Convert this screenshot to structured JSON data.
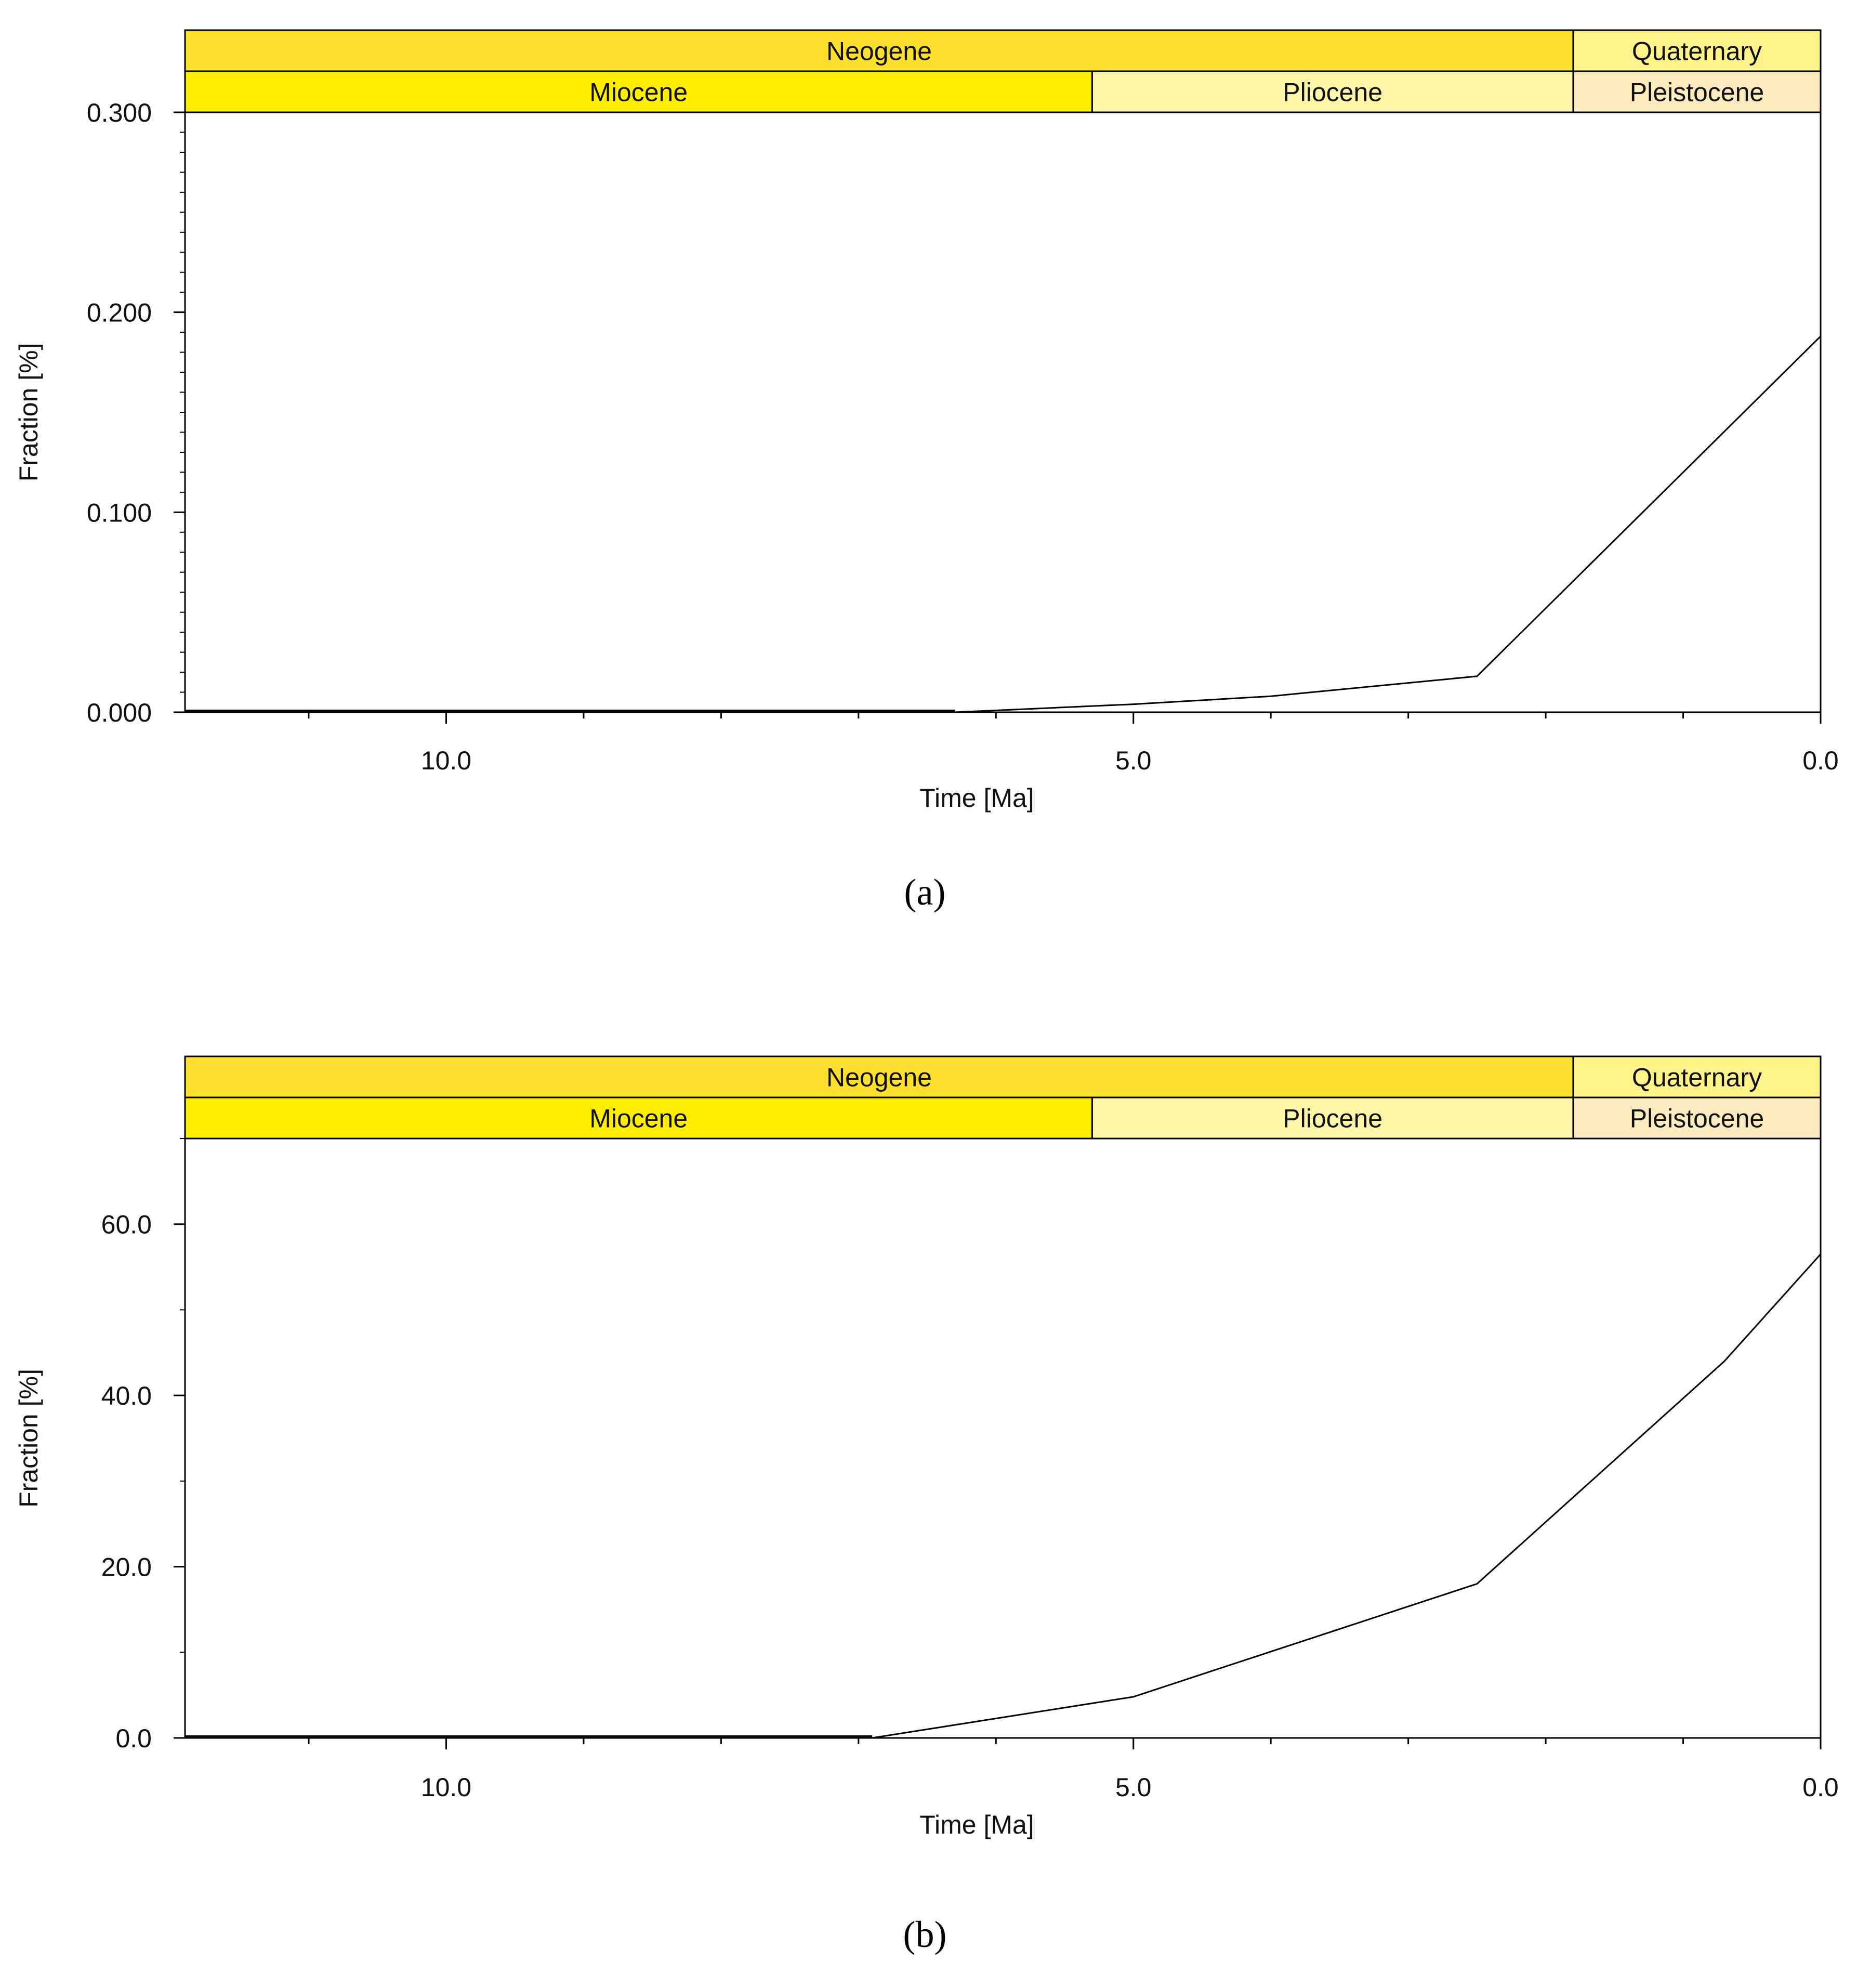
{
  "chart_data": [
    {
      "type": "line",
      "caption": "(a)",
      "xlabel": "Time [Ma]",
      "ylabel": "Fraction [%]",
      "xlim": [
        11.9,
        0.0
      ],
      "ylim": [
        0.0,
        0.3
      ],
      "x_reversed": true,
      "x_ticks": [
        "10.0",
        "5.0",
        "0.0"
      ],
      "y_ticks": [
        "0.000",
        "0.100",
        "0.200",
        "0.300"
      ],
      "grid": false,
      "timescale": {
        "periods": [
          {
            "name": "Neogene",
            "start": 11.9,
            "end": 1.8,
            "color": "#fde02e"
          },
          {
            "name": "Quaternary",
            "start": 1.8,
            "end": 0.0,
            "color": "#fef48a"
          }
        ],
        "epochs": [
          {
            "name": "Miocene",
            "start": 11.9,
            "end": 5.3,
            "color": "#ffee00"
          },
          {
            "name": "Pliocene",
            "start": 5.3,
            "end": 1.8,
            "color": "#fef7a8"
          },
          {
            "name": "Pleistocene",
            "start": 1.8,
            "end": 0.0,
            "color": "#fdebc0"
          }
        ]
      },
      "x": [
        11.9,
        10.0,
        8.0,
        6.3,
        5.0,
        4.0,
        2.5,
        0.0
      ],
      "y": [
        0.0,
        0.0,
        0.0,
        0.0,
        0.004,
        0.008,
        0.018,
        0.188
      ]
    },
    {
      "type": "line",
      "caption": "(b)",
      "xlabel": "Time [Ma]",
      "ylabel": "Fraction [%]",
      "xlim": [
        11.9,
        0.0
      ],
      "ylim": [
        0.0,
        70.0
      ],
      "x_reversed": true,
      "x_ticks": [
        "10.0",
        "5.0",
        "0.0"
      ],
      "y_ticks": [
        "0.0",
        "20.0",
        "40.0",
        "60.0"
      ],
      "grid": false,
      "timescale": {
        "periods": [
          {
            "name": "Neogene",
            "start": 11.9,
            "end": 1.8,
            "color": "#fde02e"
          },
          {
            "name": "Quaternary",
            "start": 1.8,
            "end": 0.0,
            "color": "#fef48a"
          }
        ],
        "epochs": [
          {
            "name": "Miocene",
            "start": 11.9,
            "end": 5.3,
            "color": "#ffee00"
          },
          {
            "name": "Pliocene",
            "start": 5.3,
            "end": 1.8,
            "color": "#fef7a8"
          },
          {
            "name": "Pleistocene",
            "start": 1.8,
            "end": 0.0,
            "color": "#fdebc0"
          }
        ]
      },
      "x": [
        11.9,
        10.0,
        8.0,
        6.9,
        5.0,
        4.3,
        2.5,
        0.7,
        0.0
      ],
      "y": [
        0.0,
        0.0,
        0.0,
        0.0,
        4.8,
        8.5,
        18.0,
        44.0,
        56.5
      ]
    }
  ]
}
